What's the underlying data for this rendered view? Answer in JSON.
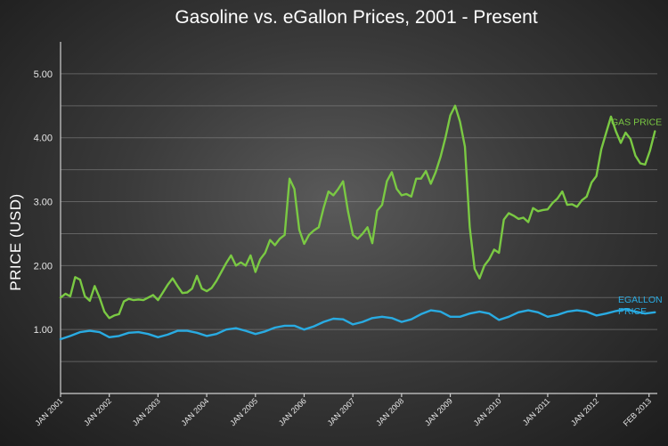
{
  "chart_data": {
    "type": "line",
    "title": "Gasoline vs. eGallon Prices, 2001 - Present",
    "ylabel": "PRICE (USD)",
    "xlabel": "",
    "ylim": [
      0.0,
      5.5
    ],
    "yticks": [
      "1.00",
      "2.00",
      "3.00",
      "4.00",
      "5.00"
    ],
    "ytick_values": [
      1,
      2,
      3,
      4,
      5
    ],
    "xlim": [
      2001.0,
      2013.25
    ],
    "xtick_labels": [
      "JAN 2001",
      "JAN 2002",
      "JAN 2003",
      "JAN 2004",
      "JAN 2005",
      "JAN 2006",
      "JAN 2007",
      "JAN 2008",
      "JAN 2009",
      "JAN 2010",
      "JAN 2011",
      "JAN 2012",
      "FEB 2013"
    ],
    "xtick_values": [
      2001.0,
      2002.0,
      2003.0,
      2004.0,
      2005.0,
      2006.0,
      2007.0,
      2008.0,
      2009.0,
      2010.0,
      2011.0,
      2012.0,
      2013.08
    ],
    "grid": true,
    "series": [
      {
        "name": "GAS PRICE",
        "color": "#7ac943",
        "points": [
          [
            2001.0,
            1.5
          ],
          [
            2001.1,
            1.56
          ],
          [
            2001.2,
            1.52
          ],
          [
            2001.3,
            1.82
          ],
          [
            2001.4,
            1.78
          ],
          [
            2001.5,
            1.52
          ],
          [
            2001.6,
            1.45
          ],
          [
            2001.7,
            1.68
          ],
          [
            2001.8,
            1.5
          ],
          [
            2001.9,
            1.28
          ],
          [
            2002.0,
            1.18
          ],
          [
            2002.1,
            1.22
          ],
          [
            2002.2,
            1.24
          ],
          [
            2002.3,
            1.44
          ],
          [
            2002.4,
            1.48
          ],
          [
            2002.5,
            1.46
          ],
          [
            2002.6,
            1.47
          ],
          [
            2002.7,
            1.46
          ],
          [
            2002.8,
            1.5
          ],
          [
            2002.9,
            1.54
          ],
          [
            2003.0,
            1.46
          ],
          [
            2003.1,
            1.58
          ],
          [
            2003.2,
            1.7
          ],
          [
            2003.3,
            1.8
          ],
          [
            2003.4,
            1.68
          ],
          [
            2003.5,
            1.57
          ],
          [
            2003.6,
            1.58
          ],
          [
            2003.7,
            1.64
          ],
          [
            2003.8,
            1.84
          ],
          [
            2003.9,
            1.64
          ],
          [
            2004.0,
            1.6
          ],
          [
            2004.1,
            1.65
          ],
          [
            2004.2,
            1.76
          ],
          [
            2004.3,
            1.9
          ],
          [
            2004.4,
            2.04
          ],
          [
            2004.5,
            2.16
          ],
          [
            2004.6,
            2.0
          ],
          [
            2004.7,
            2.05
          ],
          [
            2004.8,
            2.0
          ],
          [
            2004.9,
            2.16
          ],
          [
            2005.0,
            1.9
          ],
          [
            2005.1,
            2.1
          ],
          [
            2005.2,
            2.2
          ],
          [
            2005.3,
            2.4
          ],
          [
            2005.4,
            2.32
          ],
          [
            2005.5,
            2.42
          ],
          [
            2005.6,
            2.48
          ],
          [
            2005.7,
            3.36
          ],
          [
            2005.8,
            3.2
          ],
          [
            2005.9,
            2.56
          ],
          [
            2006.0,
            2.34
          ],
          [
            2006.1,
            2.48
          ],
          [
            2006.2,
            2.55
          ],
          [
            2006.3,
            2.6
          ],
          [
            2006.4,
            2.9
          ],
          [
            2006.5,
            3.16
          ],
          [
            2006.6,
            3.1
          ],
          [
            2006.7,
            3.2
          ],
          [
            2006.8,
            3.32
          ],
          [
            2006.9,
            2.85
          ],
          [
            2007.0,
            2.48
          ],
          [
            2007.1,
            2.42
          ],
          [
            2007.2,
            2.5
          ],
          [
            2007.3,
            2.6
          ],
          [
            2007.4,
            2.35
          ],
          [
            2007.5,
            2.86
          ],
          [
            2007.6,
            2.95
          ],
          [
            2007.7,
            3.32
          ],
          [
            2007.8,
            3.46
          ],
          [
            2007.9,
            3.2
          ],
          [
            2008.0,
            3.1
          ],
          [
            2008.1,
            3.12
          ],
          [
            2008.2,
            3.08
          ],
          [
            2008.3,
            3.36
          ],
          [
            2008.4,
            3.36
          ],
          [
            2008.5,
            3.48
          ],
          [
            2008.6,
            3.28
          ],
          [
            2008.7,
            3.46
          ],
          [
            2008.8,
            3.7
          ],
          [
            2008.9,
            4.0
          ],
          [
            2009.0,
            4.35
          ],
          [
            2009.1,
            4.5
          ],
          [
            2009.2,
            4.25
          ],
          [
            2009.3,
            3.86
          ],
          [
            2009.4,
            2.6
          ],
          [
            2009.5,
            1.95
          ],
          [
            2009.6,
            1.8
          ],
          [
            2009.7,
            2.0
          ],
          [
            2009.8,
            2.1
          ],
          [
            2009.9,
            2.25
          ],
          [
            2010.0,
            2.2
          ],
          [
            2010.1,
            2.72
          ],
          [
            2010.2,
            2.82
          ],
          [
            2010.3,
            2.78
          ],
          [
            2010.4,
            2.73
          ],
          [
            2010.5,
            2.75
          ],
          [
            2010.6,
            2.68
          ],
          [
            2010.7,
            2.9
          ],
          [
            2010.8,
            2.85
          ],
          [
            2010.9,
            2.87
          ],
          [
            2011.0,
            2.88
          ],
          [
            2011.1,
            2.98
          ],
          [
            2011.2,
            3.05
          ],
          [
            2011.3,
            3.16
          ],
          [
            2011.4,
            2.95
          ],
          [
            2011.5,
            2.96
          ],
          [
            2011.6,
            2.92
          ],
          [
            2011.7,
            3.02
          ],
          [
            2011.8,
            3.08
          ],
          [
            2011.9,
            3.3
          ],
          [
            2012.0,
            3.4
          ],
          [
            2012.1,
            3.82
          ],
          [
            2012.2,
            4.08
          ],
          [
            2012.3,
            4.33
          ],
          [
            2012.4,
            4.1
          ],
          [
            2012.5,
            3.92
          ],
          [
            2012.6,
            4.08
          ],
          [
            2012.7,
            3.98
          ],
          [
            2012.8,
            3.72
          ],
          [
            2012.9,
            3.6
          ],
          [
            2013.0,
            3.58
          ],
          [
            2013.1,
            3.8
          ],
          [
            2013.2,
            4.1
          ]
        ]
      },
      {
        "name": "EGALLON PRICE",
        "color": "#29abe2",
        "points": [
          [
            2001.0,
            0.85
          ],
          [
            2001.2,
            0.9
          ],
          [
            2001.4,
            0.96
          ],
          [
            2001.6,
            0.98
          ],
          [
            2001.8,
            0.96
          ],
          [
            2002.0,
            0.88
          ],
          [
            2002.2,
            0.9
          ],
          [
            2002.4,
            0.95
          ],
          [
            2002.6,
            0.96
          ],
          [
            2002.8,
            0.93
          ],
          [
            2003.0,
            0.88
          ],
          [
            2003.2,
            0.92
          ],
          [
            2003.4,
            0.98
          ],
          [
            2003.6,
            0.98
          ],
          [
            2003.8,
            0.95
          ],
          [
            2004.0,
            0.9
          ],
          [
            2004.2,
            0.93
          ],
          [
            2004.4,
            1.0
          ],
          [
            2004.6,
            1.02
          ],
          [
            2004.8,
            0.98
          ],
          [
            2005.0,
            0.93
          ],
          [
            2005.2,
            0.97
          ],
          [
            2005.4,
            1.03
          ],
          [
            2005.6,
            1.06
          ],
          [
            2005.8,
            1.06
          ],
          [
            2006.0,
            1.0
          ],
          [
            2006.2,
            1.05
          ],
          [
            2006.4,
            1.12
          ],
          [
            2006.6,
            1.17
          ],
          [
            2006.8,
            1.16
          ],
          [
            2007.0,
            1.08
          ],
          [
            2007.2,
            1.12
          ],
          [
            2007.4,
            1.18
          ],
          [
            2007.6,
            1.2
          ],
          [
            2007.8,
            1.18
          ],
          [
            2008.0,
            1.12
          ],
          [
            2008.2,
            1.16
          ],
          [
            2008.4,
            1.24
          ],
          [
            2008.6,
            1.3
          ],
          [
            2008.8,
            1.28
          ],
          [
            2009.0,
            1.2
          ],
          [
            2009.2,
            1.2
          ],
          [
            2009.4,
            1.25
          ],
          [
            2009.6,
            1.28
          ],
          [
            2009.8,
            1.25
          ],
          [
            2010.0,
            1.15
          ],
          [
            2010.2,
            1.2
          ],
          [
            2010.4,
            1.27
          ],
          [
            2010.6,
            1.3
          ],
          [
            2010.8,
            1.27
          ],
          [
            2011.0,
            1.2
          ],
          [
            2011.2,
            1.23
          ],
          [
            2011.4,
            1.28
          ],
          [
            2011.6,
            1.3
          ],
          [
            2011.8,
            1.28
          ],
          [
            2012.0,
            1.22
          ],
          [
            2012.2,
            1.25
          ],
          [
            2012.4,
            1.29
          ],
          [
            2012.6,
            1.32
          ],
          [
            2012.8,
            1.28
          ],
          [
            2013.0,
            1.25
          ],
          [
            2013.2,
            1.27
          ]
        ]
      }
    ],
    "series_label_lines": {
      "gas": [
        "GAS PRICE"
      ],
      "egallon": [
        "EGALLON",
        "PRICE"
      ]
    }
  }
}
